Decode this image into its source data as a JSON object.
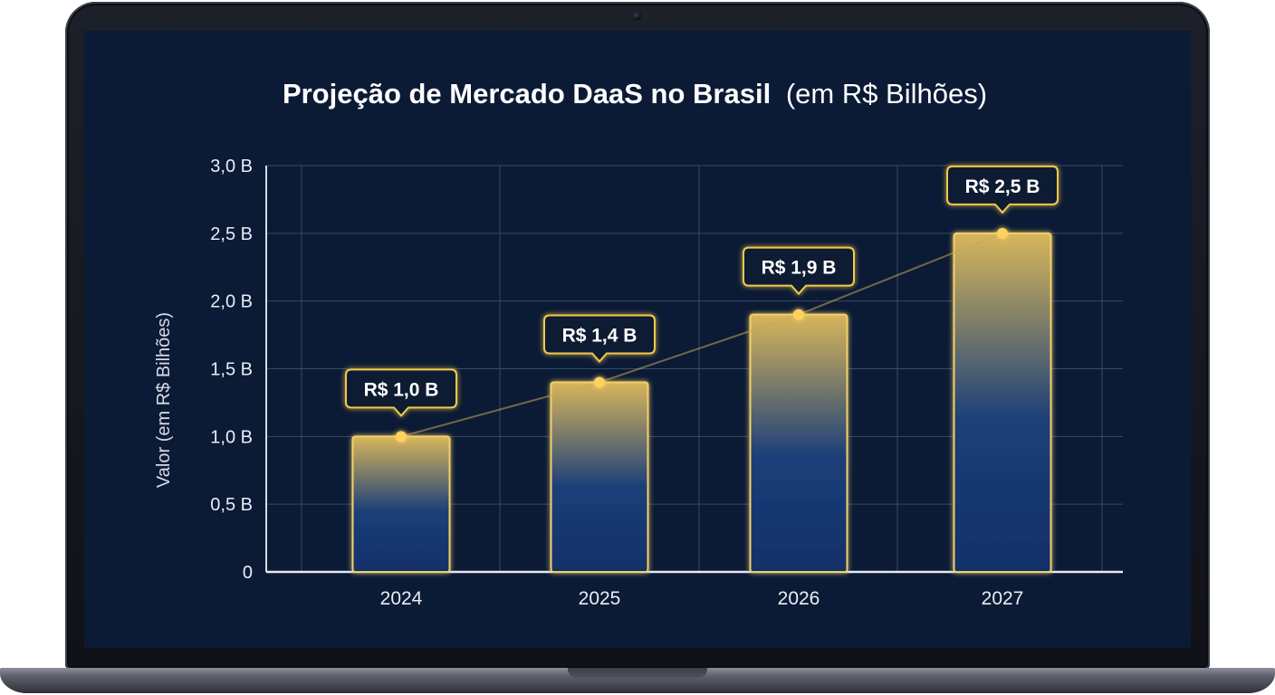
{
  "chart_data": {
    "type": "bar",
    "title": "Projeção de Mercado DaaS no Brasil",
    "title_unit": "(em R$ Bilhões)",
    "xlabel": "",
    "ylabel": "Valor (em R$ Bilhões)",
    "categories": [
      "2024",
      "2025",
      "2026",
      "2027"
    ],
    "values": [
      1.0,
      1.4,
      1.9,
      2.5
    ],
    "data_labels": [
      "R$ 1,0 B",
      "R$ 1,4 B",
      "R$ 1,9 B",
      "R$ 2,5 B"
    ],
    "ylim": [
      0,
      3.0
    ],
    "yticks": [
      0,
      0.5,
      1.0,
      1.5,
      2.0,
      2.5,
      3.0
    ],
    "ytick_labels": [
      "0",
      "0,5 B",
      "1,0 B",
      "1,5 B",
      "2,0 B",
      "2,5 B",
      "3,0 B"
    ],
    "trend_line": true,
    "grid": true,
    "colors": {
      "background": "#0b1a35",
      "grid": "#3a4a66",
      "bar_top": "#d8b65a",
      "bar_bottom": "#11306a",
      "bar_outline": "#f2d06b",
      "marker": "#ffd25e",
      "label_border": "#f2c94c",
      "label_fill": "#0d1a33",
      "text": "#e9edf5"
    }
  }
}
